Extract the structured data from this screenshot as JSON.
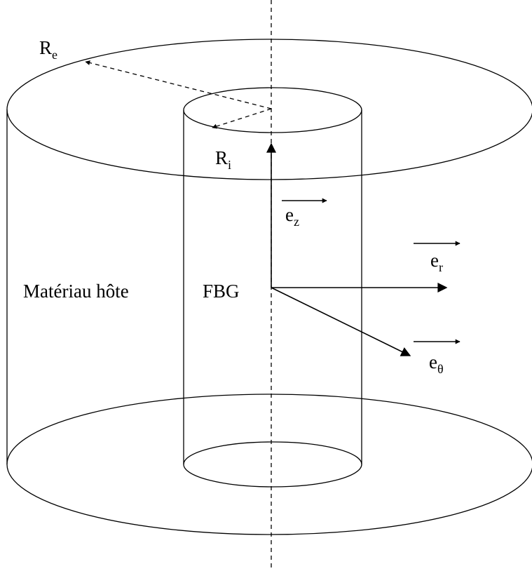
{
  "labels": {
    "outer_radius": {
      "base": "R",
      "sub": "e"
    },
    "inner_radius": {
      "base": "R",
      "sub": "i"
    },
    "axis_z": {
      "base": "e",
      "sub": "z"
    },
    "axis_r": {
      "base": "e",
      "sub": "r"
    },
    "axis_theta": {
      "base": "e",
      "sub": "θ"
    },
    "host_material": "Matériau hôte",
    "fiber": "FBG"
  }
}
